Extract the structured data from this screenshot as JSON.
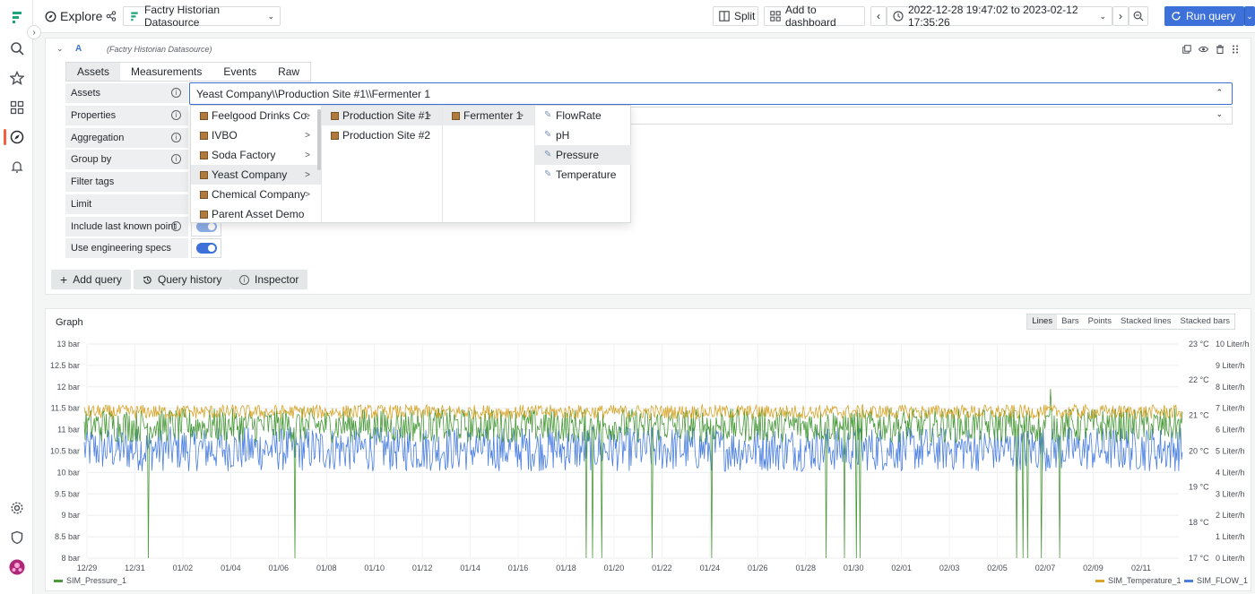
{
  "topbar": {
    "title": "Explore",
    "datasource": "Factry Historian Datasource",
    "split_label": "Split",
    "add_dashboard_label": "Add to dashboard",
    "time_range": "2022-12-28 19:47:02 to 2023-02-12 17:35:26",
    "run_label": "Run query"
  },
  "query": {
    "ref_id": "A",
    "datasource_note": "(Factry Historian Datasource)",
    "tabs": [
      {
        "label": "Assets",
        "active": true
      },
      {
        "label": "Measurements",
        "active": false
      },
      {
        "label": "Events",
        "active": false
      },
      {
        "label": "Raw",
        "active": false
      }
    ],
    "props": [
      {
        "label": "Assets",
        "info": true
      },
      {
        "label": "Properties",
        "info": true
      },
      {
        "label": "Aggregation",
        "info": true
      },
      {
        "label": "Group by",
        "info": true
      },
      {
        "label": "Filter tags",
        "info": false
      },
      {
        "label": "Limit",
        "info": false
      },
      {
        "label": "Include last known point",
        "info": true
      },
      {
        "label": "Use engineering specs",
        "info": false
      }
    ],
    "assets_value": "Yeast Company\\\\Production Site #1\\\\Fermenter 1",
    "add_query_label": "Add query",
    "history_label": "Query history",
    "inspector_label": "Inspector"
  },
  "dropdown": {
    "col1": [
      "Feelgood Drinks Co.",
      "IVBO",
      "Soda Factory",
      "Yeast Company",
      "Chemical Company",
      "Parent Asset Demo"
    ],
    "col1_has_children": [
      true,
      true,
      true,
      true,
      true,
      false
    ],
    "col1_selected": 3,
    "col2": [
      "Production Site #1",
      "Production Site #2"
    ],
    "col2_has_children": [
      true,
      false
    ],
    "col2_selected": 0,
    "col3": [
      "Fermenter 1"
    ],
    "col3_selected": 0,
    "col4": [
      "FlowRate",
      "pH",
      "Pressure",
      "Temperature"
    ],
    "col4_selected": 2
  },
  "graph": {
    "title": "Graph",
    "modes": [
      {
        "label": "Lines",
        "active": true
      },
      {
        "label": "Bars",
        "active": false
      },
      {
        "label": "Points",
        "active": false
      },
      {
        "label": "Stacked lines",
        "active": false
      },
      {
        "label": "Stacked bars",
        "active": false
      }
    ],
    "legend": [
      {
        "name": "SIM_Pressure_1",
        "color": "#4a9a3a"
      },
      {
        "name": "SIM_Temperature_1",
        "color": "#d6a52b"
      },
      {
        "name": "SIM_FLOW_1",
        "color": "#4a7fe0"
      }
    ]
  },
  "chart_data": {
    "type": "line",
    "x_tick_labels": [
      "12/29",
      "12/31",
      "01/02",
      "01/04",
      "01/06",
      "01/08",
      "01/10",
      "01/12",
      "01/14",
      "01/16",
      "01/18",
      "01/20",
      "01/22",
      "01/24",
      "01/26",
      "01/28",
      "01/30",
      "02/01",
      "02/03",
      "02/05",
      "02/07",
      "02/09",
      "02/11"
    ],
    "y_left_labels": [
      "13 bar",
      "12.5 bar",
      "12 bar",
      "11.5 bar",
      "11 bar",
      "10.5 bar",
      "10 bar",
      "9.5 bar",
      "9 bar",
      "8.5 bar",
      "8 bar"
    ],
    "y_right1_labels": [
      "23 °C",
      "22 °C",
      "21 °C",
      "20 °C",
      "19 °C",
      "18 °C",
      "17 °C"
    ],
    "y_right2_labels": [
      "10 Liter/h",
      "9 Liter/h",
      "8 Liter/h",
      "7 Liter/h",
      "6 Liter/h",
      "5 Liter/h",
      "4 Liter/h",
      "3 Liter/h",
      "2 Liter/h",
      "1 Liter/h",
      "0 Liter/h"
    ],
    "y_left_range": [
      8,
      13
    ],
    "y_right1_range": [
      17,
      23
    ],
    "y_right2_range": [
      0,
      10
    ],
    "series": [
      {
        "name": "SIM_Pressure_1",
        "axis": "left",
        "approx_mean": 11.1,
        "approx_range": [
          10.6,
          11.4
        ],
        "spike_max": 11.95,
        "dropouts_to": 8
      },
      {
        "name": "SIM_Temperature_1",
        "axis": "right1",
        "approx_mean": 21.1,
        "approx_range": [
          20.9,
          21.3
        ]
      },
      {
        "name": "SIM_FLOW_1",
        "axis": "right2",
        "approx_mean": 5.1,
        "approx_range": [
          4.0,
          6.1
        ]
      }
    ]
  }
}
